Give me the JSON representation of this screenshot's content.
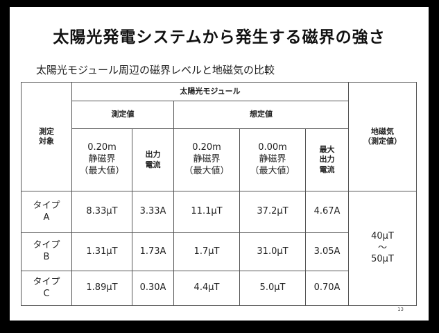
{
  "title": "太陽光発電システムから発生する磁界の強さ",
  "subtitle": "太陽光モジュール周辺の磁界レベルと地磁気の比較",
  "table": {
    "header": {
      "target": [
        "測定",
        "対象"
      ],
      "module": "太陽光モジュール",
      "measured": "測定値",
      "assumed": "想定値",
      "earth": [
        "地磁気",
        "（測定値）"
      ],
      "columns": [
        [
          "0.20m",
          "静磁界",
          "（最大値）"
        ],
        [
          "出力",
          "電流"
        ],
        [
          "0.20m",
          "静磁界",
          "（最大値）"
        ],
        [
          "0.00m",
          "静磁界",
          "（最大値）"
        ],
        [
          "最大",
          "出力",
          "電流"
        ]
      ]
    },
    "rows": [
      {
        "label": [
          "タイプ",
          "A"
        ],
        "values": [
          "8.33μT",
          "3.33A",
          "11.1μT",
          "37.2μT",
          "4.67A"
        ]
      },
      {
        "label": [
          "タイプ",
          "B"
        ],
        "values": [
          "1.31μT",
          "1.73A",
          "1.7μT",
          "31.0μT",
          "3.05A"
        ]
      },
      {
        "label": [
          "タイプ",
          "C"
        ],
        "values": [
          "1.89μT",
          "0.30A",
          "4.4μT",
          "5.0μT",
          "0.70A"
        ]
      }
    ],
    "earth_value": [
      "40μT",
      "～",
      "50μT"
    ]
  },
  "page_number": "13"
}
